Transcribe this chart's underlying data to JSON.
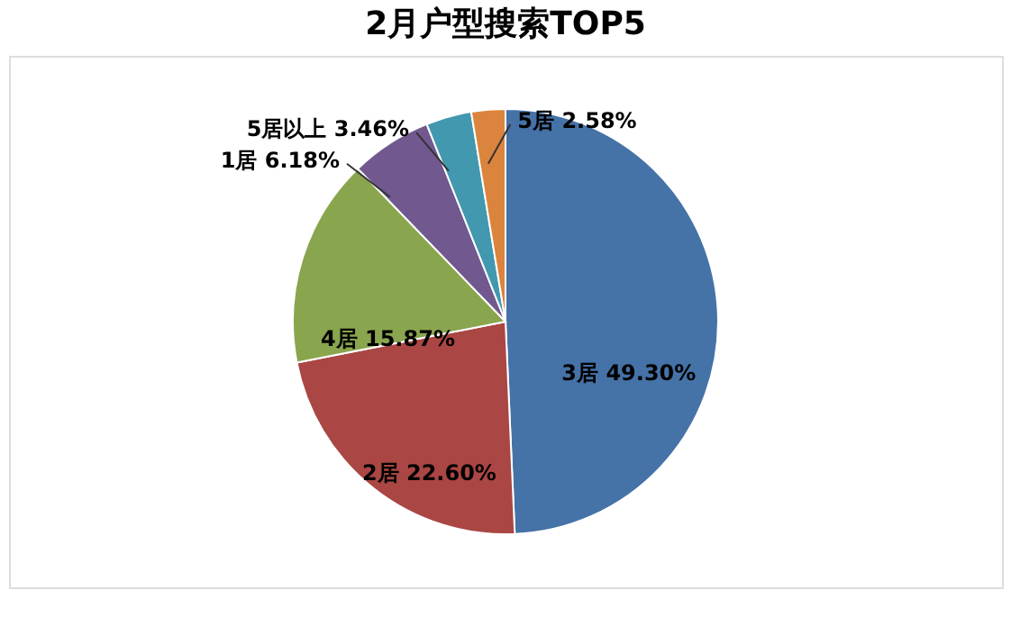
{
  "chart_data": {
    "type": "pie",
    "title": "2月户型搜索TOP5",
    "categories": [
      "3居",
      "2居",
      "4居",
      "1居",
      "5居以上",
      "5居"
    ],
    "values": [
      49.3,
      22.6,
      15.87,
      6.18,
      3.46,
      2.58
    ],
    "value_labels": [
      "49.30%",
      "22.60%",
      "15.87%",
      "6.18%",
      "3.46%",
      "2.58%"
    ],
    "colors": [
      "#4572a7",
      "#aa4643",
      "#89a54e",
      "#71588f",
      "#4198af",
      "#db843d"
    ],
    "data_labels": true,
    "legend": false
  }
}
